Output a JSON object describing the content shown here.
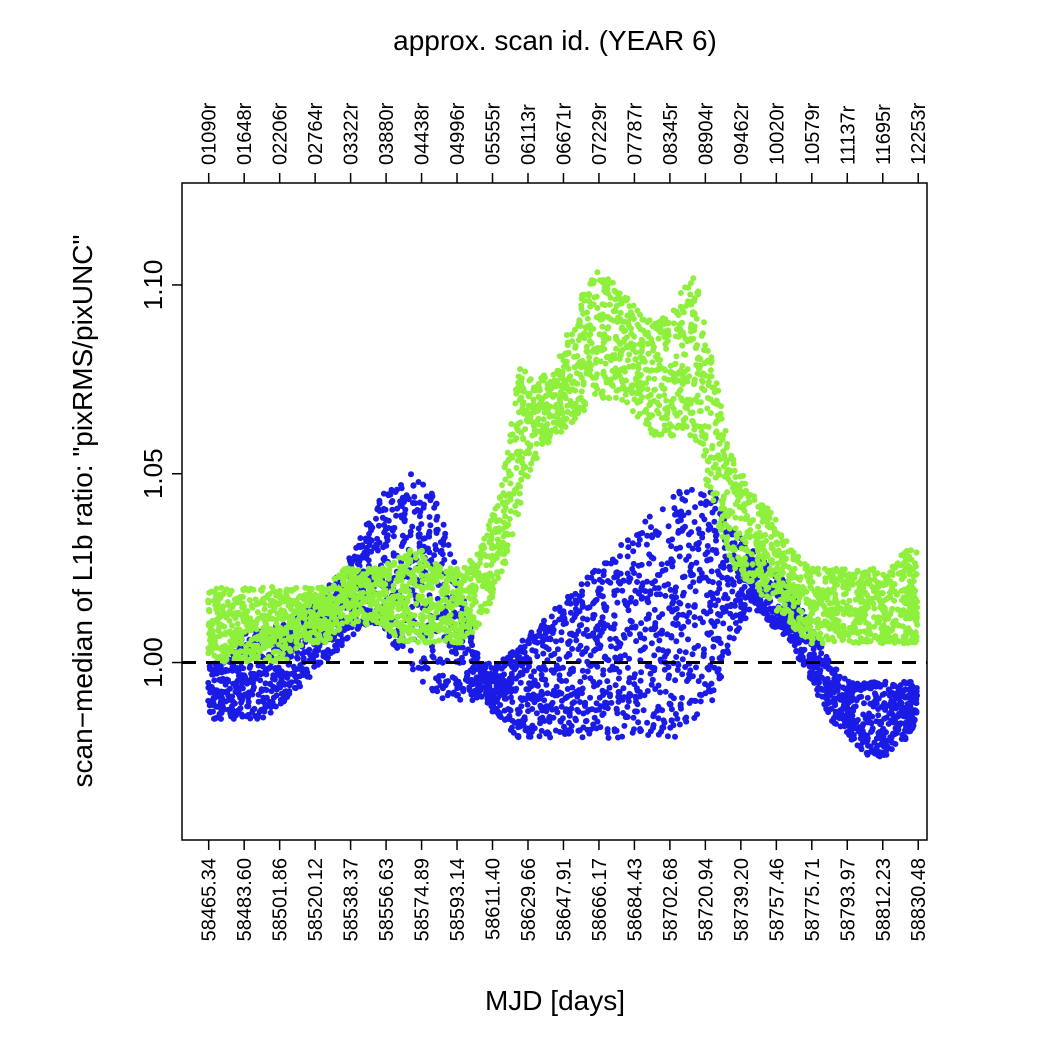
{
  "chart_data": {
    "type": "scatter",
    "title": "approx. scan id. (YEAR 6)",
    "xlabel": "MJD [days]",
    "ylabel": "scan−median of L1b ratio: \"pixRMS/pixUNC\"",
    "xlim": [
      58451.6,
      58835.0
    ],
    "ylim": [
      0.953,
      1.127
    ],
    "grid": false,
    "x_ticks": [
      58465.34,
      58483.6,
      58501.86,
      58520.12,
      58538.37,
      58556.63,
      58574.89,
      58593.14,
      58611.4,
      58629.66,
      58647.91,
      58666.17,
      58684.43,
      58702.68,
      58720.94,
      58739.2,
      58757.46,
      58775.71,
      58793.97,
      58812.23,
      58830.48
    ],
    "x_tick_labels": [
      "58465.34",
      "58483.60",
      "58501.86",
      "58520.12",
      "58538.37",
      "58556.63",
      "58574.89",
      "58593.14",
      "58611.40",
      "58629.66",
      "58647.91",
      "58666.17",
      "58684.43",
      "58702.68",
      "58720.94",
      "58739.20",
      "58757.46",
      "58775.71",
      "58793.97",
      "58812.23",
      "58830.48"
    ],
    "top_tick_labels": [
      "01090r",
      "01648r",
      "02206r",
      "02764r",
      "03322r",
      "03880r",
      "04438r",
      "04996r",
      "05555r",
      "06113r",
      "06671r",
      "07229r",
      "07787r",
      "08345r",
      "08904r",
      "09462r",
      "10020r",
      "10579r",
      "11137r",
      "11695r",
      "12253r"
    ],
    "y_ticks": [
      1.0,
      1.05,
      1.1
    ],
    "y_tick_labels": [
      "1.00",
      "1.05",
      "1.10"
    ],
    "reference_line": {
      "y": 1.0,
      "style": "dashed",
      "color": "#000000"
    },
    "series": [
      {
        "color": "#1b1be6",
        "x": [
          58465,
          58475,
          58485,
          58495,
          58505,
          58515,
          58525,
          58535,
          58545,
          58555,
          58565,
          58575,
          58585,
          58595,
          58605,
          58615,
          58625,
          58635,
          58645,
          58655,
          58665,
          58675,
          58685,
          58695,
          58705,
          58715,
          58725,
          58735,
          58745,
          58755,
          58765,
          58775,
          58785,
          58795,
          58805,
          58815,
          58825,
          58830
        ],
        "upper": [
          1.0,
          1.0,
          1.01,
          1.01,
          1.01,
          1.015,
          1.02,
          1.025,
          1.035,
          1.045,
          1.05,
          1.05,
          1.04,
          1.02,
          1.0,
          1.0,
          1.005,
          1.01,
          1.015,
          1.02,
          1.025,
          1.03,
          1.035,
          1.04,
          1.045,
          1.05,
          1.045,
          1.035,
          1.03,
          1.025,
          1.02,
          1.01,
          1.0,
          0.995,
          0.995,
          0.995,
          0.995,
          0.995
        ],
        "lower": [
          0.985,
          0.985,
          0.985,
          0.985,
          0.99,
          0.995,
          1.0,
          1.005,
          1.01,
          1.01,
          1.0,
          0.995,
          0.99,
          0.99,
          0.99,
          0.985,
          0.98,
          0.98,
          0.98,
          0.98,
          0.98,
          0.98,
          0.98,
          0.98,
          0.98,
          0.985,
          0.99,
          1.005,
          1.015,
          1.01,
          1.005,
          0.995,
          0.985,
          0.98,
          0.975,
          0.975,
          0.98,
          0.985
        ]
      },
      {
        "color": "#8ef03c",
        "x": [
          58465,
          58475,
          58485,
          58495,
          58505,
          58515,
          58525,
          58535,
          58545,
          58555,
          58565,
          58575,
          58585,
          58595,
          58605,
          58615,
          58625,
          58635,
          58645,
          58655,
          58665,
          58675,
          58685,
          58695,
          58705,
          58715,
          58725,
          58735,
          58745,
          58755,
          58765,
          58775,
          58785,
          58795,
          58805,
          58815,
          58825,
          58830
        ],
        "upper": [
          1.02,
          1.02,
          1.02,
          1.02,
          1.02,
          1.02,
          1.02,
          1.025,
          1.025,
          1.025,
          1.03,
          1.03,
          1.025,
          1.025,
          1.03,
          1.045,
          1.08,
          1.075,
          1.08,
          1.095,
          1.105,
          1.1,
          1.095,
          1.09,
          1.095,
          1.105,
          1.08,
          1.055,
          1.045,
          1.04,
          1.03,
          1.025,
          1.025,
          1.025,
          1.025,
          1.025,
          1.03,
          1.03
        ],
        "lower": [
          1.0,
          1.0,
          1.0,
          1.0,
          1.0,
          1.005,
          1.005,
          1.01,
          1.01,
          1.01,
          1.005,
          1.005,
          1.005,
          1.005,
          1.01,
          1.02,
          1.04,
          1.055,
          1.06,
          1.065,
          1.07,
          1.07,
          1.065,
          1.06,
          1.06,
          1.06,
          1.04,
          1.025,
          1.02,
          1.015,
          1.01,
          1.005,
          1.005,
          1.005,
          1.005,
          1.005,
          1.005,
          1.005
        ]
      }
    ]
  }
}
